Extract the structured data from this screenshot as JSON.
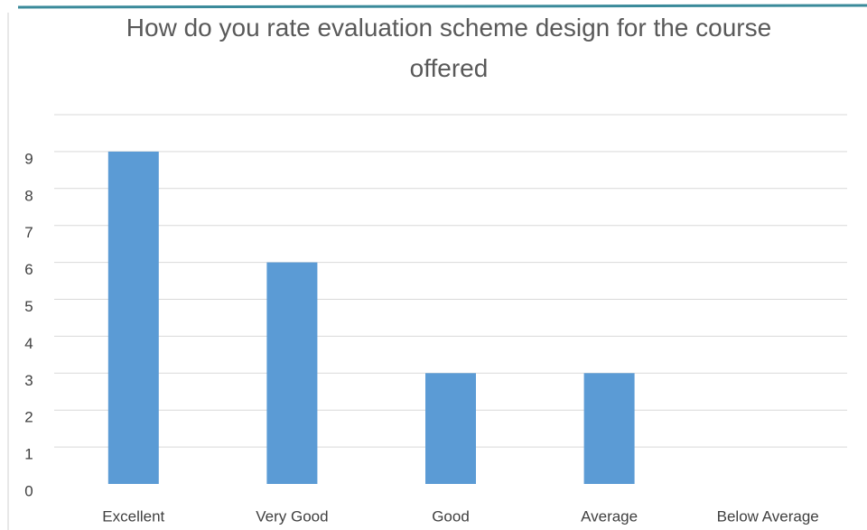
{
  "chart_data": {
    "type": "bar",
    "title": "How do you rate evaluation scheme design for the course offered",
    "categories": [
      "Excellent",
      "Very Good",
      "Good",
      "Average",
      "Below Average"
    ],
    "values": [
      9,
      6,
      3,
      3,
      0
    ],
    "color": "#5b9bd5",
    "ylim": [
      0,
      10
    ],
    "yticks": [
      0,
      1,
      2,
      3,
      4,
      5,
      6,
      7,
      8,
      9
    ],
    "grid": true
  }
}
